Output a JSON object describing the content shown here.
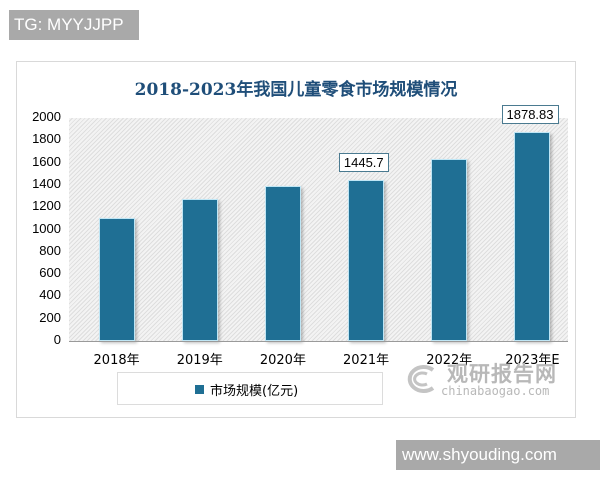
{
  "watermarks": {
    "top": "TG: MYYJJPP",
    "bottom": "www.shyouding.com"
  },
  "brand_watermark": {
    "cn": "观研报告网",
    "en": "chinabaogao.com"
  },
  "colors": {
    "bar": "#1f6f94",
    "title": "#1f4e79"
  },
  "chart_data": {
    "type": "bar",
    "title": "2018-2023年我国儿童零食市场规模情况",
    "categories": [
      "2018年",
      "2019年",
      "2020年",
      "2021年",
      "2022年",
      "2023年E"
    ],
    "series": [
      {
        "name": "市场规模(亿元)",
        "values": [
          1106,
          1276,
          1393,
          1445.7,
          1635,
          1878.83
        ]
      }
    ],
    "data_labels": [
      {
        "category": "2021年",
        "text": "1445.7"
      },
      {
        "category": "2023年E",
        "text": "1878.83"
      }
    ],
    "xlabel": "",
    "ylabel": "",
    "ylim": [
      0,
      2000
    ],
    "yticks": [
      "2000",
      "1800",
      "1600",
      "1400",
      "1200",
      "1000",
      "800",
      "600",
      "400",
      "200",
      "0"
    ],
    "grid": false,
    "legend_position": "bottom"
  }
}
